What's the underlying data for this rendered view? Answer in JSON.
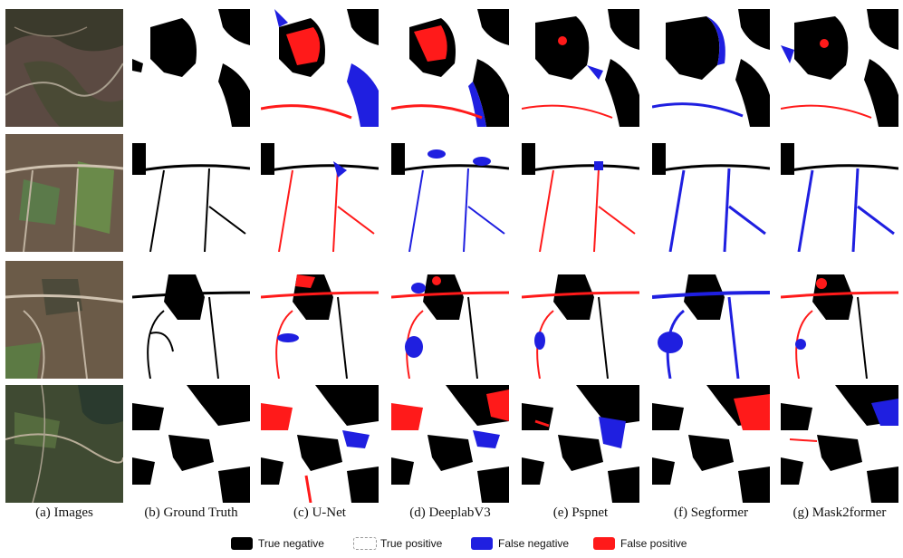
{
  "columns": [
    {
      "label": "(a) Images"
    },
    {
      "label": "(b) Ground Truth"
    },
    {
      "label": "(c) U-Net"
    },
    {
      "label": "(d) DeeplabV3"
    },
    {
      "label": "(e) Pspnet"
    },
    {
      "label": "(f) Segformer"
    },
    {
      "label": "(g) Mask2former"
    }
  ],
  "legend": [
    {
      "label": "True negative",
      "color": "#000000"
    },
    {
      "label": "True positive",
      "color": "#ffffff"
    },
    {
      "label": "False negative",
      "color": "#1f1fe0"
    },
    {
      "label": "False positive",
      "color": "#ff1a1a"
    }
  ]
}
